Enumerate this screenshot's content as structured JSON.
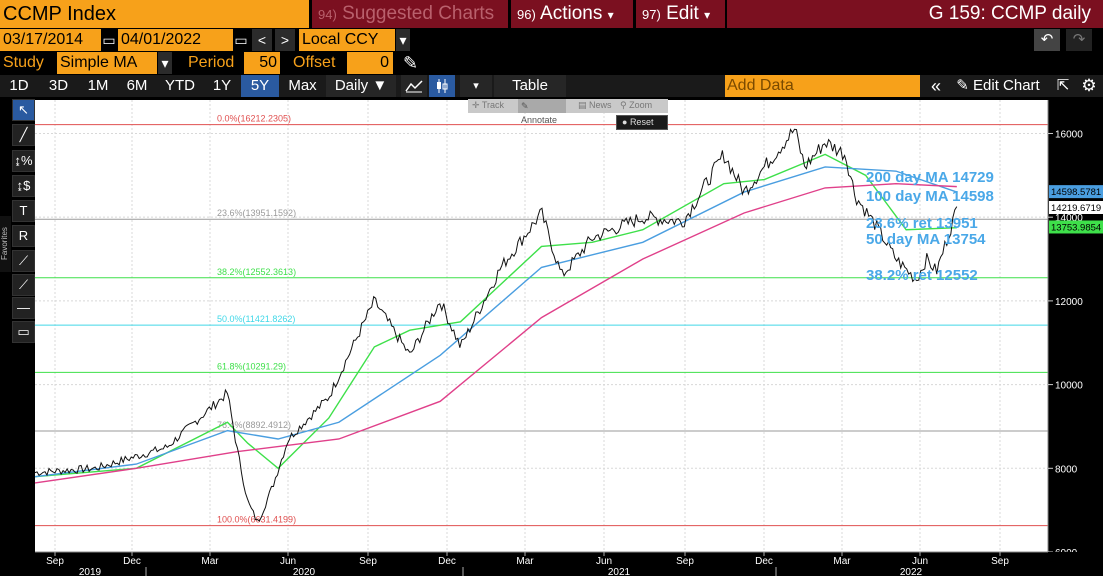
{
  "header": {
    "ticker": "CCMP Index",
    "suggested": {
      "num": "94)",
      "label": "Suggested Charts"
    },
    "actions": {
      "num": "96)",
      "label": "Actions",
      "caret": "▾"
    },
    "edit": {
      "num": "97)",
      "label": "Edit",
      "caret": "▾"
    },
    "title": "G 159: CCMP daily"
  },
  "dates": {
    "start": "03/17/2014",
    "end": "04/01/2022",
    "currency": "Local CCY",
    "caret": "▾",
    "prev": "<",
    "next": ">",
    "undo": "↶",
    "redo": "↷"
  },
  "study": {
    "label": "Study",
    "value": "Simple MA",
    "caret": "▾",
    "period_label": "Period",
    "period": "50",
    "offset_label": "Offset",
    "offset": "0",
    "pencil": "✎"
  },
  "toolbar": {
    "ranges": [
      "1D",
      "3D",
      "1M",
      "6M",
      "YTD",
      "1Y",
      "5Y",
      "Max"
    ],
    "active_range": "5Y",
    "frequency": "Daily ▼",
    "caret": "▾",
    "table": "Table",
    "add_data_placeholder": "Add Data",
    "collapse": "«",
    "edit_chart": "✎ Edit Chart",
    "gear": "⚙",
    "expand": "⇱"
  },
  "floating_toolbar": {
    "items": [
      "Track",
      "Annotate",
      "News",
      "Zoom"
    ],
    "reset": "Reset"
  },
  "left_tools": {
    "favorites": "Favorites",
    "icons": [
      "cursor-icon",
      "line-draw-icon",
      "percent-tool-icon",
      "dollar-tool-icon",
      "text-tool-icon",
      "retracement-icon",
      "trend-line-icon",
      "channel-icon",
      "horizontal-line-icon",
      "parallel-lines-icon"
    ],
    "glyphs": [
      "↖",
      "╱",
      "↨%",
      "↨$",
      "T",
      "R",
      "⟋",
      "⟋",
      "—",
      "▭"
    ]
  },
  "colors": {
    "orange": "#f7a11a",
    "maroon": "#7b1020",
    "price": "#ffffff",
    "ma50": "#3ee04a",
    "ma100": "#4a9ee0",
    "ma200": "#e0408a",
    "annotation": "#4aa8e8",
    "fib_red": "#e05050",
    "fib_green": "#3ee04a",
    "fib_cyan": "#40d8e8",
    "fib_gray": "#9a9a9a"
  },
  "chart_data": {
    "type": "line",
    "title": "",
    "xlabel": "",
    "ylabel": "",
    "ylim": [
      6000,
      16800
    ],
    "yticks": [
      6000,
      8000,
      10000,
      12000,
      14000,
      16000
    ],
    "x_month_ticks": [
      "Sep",
      "Dec",
      "Mar",
      "Jun",
      "Sep",
      "Dec",
      "Mar",
      "Jun",
      "Sep",
      "Dec",
      "Mar",
      "Jun",
      "Sep"
    ],
    "x_years": [
      "2019",
      "2020",
      "2021",
      "2022"
    ],
    "grid": true,
    "fib_levels": [
      {
        "label": "0.0%(16212.2305)",
        "value": 16212.2305,
        "color": "#e05050"
      },
      {
        "label": "23.6%(13951.1592)",
        "value": 13951.1592,
        "color": "#9a9a9a"
      },
      {
        "label": "38.2%(12552.3613)",
        "value": 12552.3613,
        "color": "#3ee04a"
      },
      {
        "label": "50.0%(11421.8262)",
        "value": 11421.8262,
        "color": "#40d8e8"
      },
      {
        "label": "61.8%(10291.29)",
        "value": 10291.29,
        "color": "#3ee04a"
      },
      {
        "label": "76.4%(8892.4912)",
        "value": 8892.4912,
        "color": "#9a9a9a"
      },
      {
        "label": "100.0%(6631.4199)",
        "value": 6631.4199,
        "color": "#e05050"
      }
    ],
    "annotations": [
      {
        "text": "200 day MA 14729",
        "value": 14729
      },
      {
        "text": "100 day MA 14598",
        "value": 14598
      },
      {
        "text": "23.6% ret 13951",
        "value": 13951
      },
      {
        "text": "50 day MA 13754",
        "value": 13754
      },
      {
        "text": "38.2% ret 12552",
        "value": 12552
      }
    ],
    "right_labels": [
      {
        "text": "14598.5781",
        "value": 14598.5781,
        "bg": "#4a9ee0",
        "fg": "#000000"
      },
      {
        "text": "14219.6719",
        "value": 14219.6719,
        "bg": "#ffffff",
        "fg": "#000000"
      },
      {
        "text": "13753.9854",
        "value": 13753.9854,
        "bg": "#3ee04a",
        "fg": "#000000"
      }
    ],
    "series": [
      {
        "key": "price",
        "t": [
          0.0,
          0.06,
          0.13,
          0.19,
          0.2,
          0.21,
          0.22,
          0.235,
          0.25,
          0.29,
          0.335,
          0.37,
          0.4,
          0.42,
          0.46,
          0.5,
          0.52,
          0.55,
          0.6,
          0.64,
          0.68,
          0.7,
          0.75,
          0.76,
          0.78,
          0.8,
          0.81,
          0.83,
          0.85,
          0.87,
          0.88,
          0.89,
          0.91
        ],
        "values": [
          7900,
          8000,
          8500,
          9800,
          8400,
          7200,
          6700,
          7600,
          8700,
          9700,
          12000,
          10700,
          12000,
          10900,
          12800,
          14100,
          12600,
          13500,
          14000,
          13900,
          15500,
          14600,
          16100,
          15200,
          15800,
          15500,
          14500,
          13800,
          13000,
          12500,
          13000,
          12700,
          14200
        ]
      },
      {
        "key": "ma50",
        "t": [
          0.0,
          0.1,
          0.19,
          0.21,
          0.24,
          0.29,
          0.335,
          0.37,
          0.42,
          0.5,
          0.55,
          0.6,
          0.68,
          0.72,
          0.78,
          0.82,
          0.86,
          0.91
        ],
        "values": [
          7800,
          8000,
          9100,
          8600,
          8000,
          9200,
          10900,
          11300,
          11500,
          13300,
          13400,
          13700,
          14800,
          14900,
          15500,
          15000,
          13700,
          13750
        ]
      },
      {
        "key": "ma100",
        "t": [
          0.0,
          0.1,
          0.19,
          0.24,
          0.3,
          0.4,
          0.5,
          0.6,
          0.7,
          0.78,
          0.85,
          0.91
        ],
        "values": [
          7800,
          8100,
          8900,
          8700,
          9100,
          10700,
          12800,
          13400,
          14600,
          15200,
          15100,
          14600
        ]
      },
      {
        "key": "ma200",
        "t": [
          0.0,
          0.1,
          0.2,
          0.3,
          0.4,
          0.5,
          0.6,
          0.7,
          0.78,
          0.85,
          0.91
        ],
        "values": [
          7650,
          8000,
          8400,
          8700,
          9600,
          11600,
          13000,
          14100,
          14700,
          14800,
          14730
        ]
      }
    ]
  }
}
